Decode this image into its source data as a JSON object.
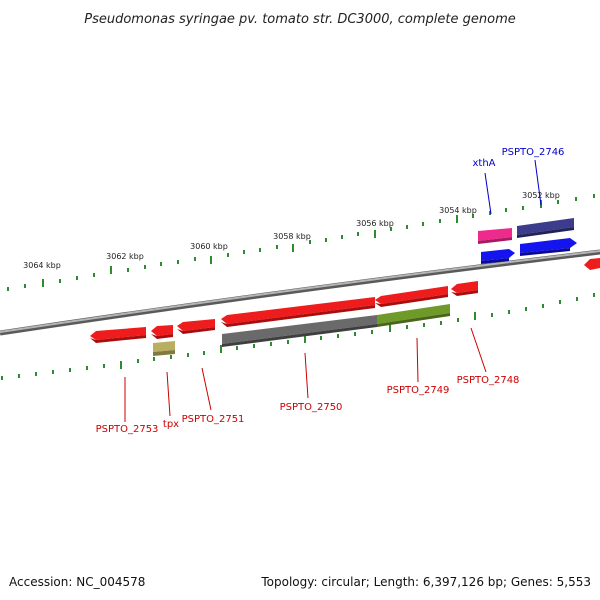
{
  "title": "Pseudomonas syringae pv. tomato str. DC3000, complete genome",
  "footer": {
    "accession": "Accession: NC_004578",
    "summary": "Topology: circular; Length: 6,397,126 bp; Genes: 5,553"
  },
  "scale": {
    "unit": "kbp",
    "labels": [
      "3064 kbp",
      "3062 kbp",
      "3060 kbp",
      "3058 kbp",
      "3056 kbp",
      "3054 kbp",
      "3052 kbp"
    ]
  },
  "colors": {
    "backbone": "#8a8a8a",
    "tick": "#2e8b2e",
    "cds": "#ee1c1c",
    "cds_grey": "#6a6a6a",
    "cds_olive": "#6f9a2a",
    "trna": "#b8b060",
    "xthA": "#ee2a8c",
    "PSPTO_2746": "#3c3c8c",
    "blue_feature": "#1414ee",
    "red_label": "#cc0000",
    "blue_label": "#0000cc"
  },
  "genes": [
    {
      "id": "PSPTO_2753",
      "label": "PSPTO_2753",
      "strand": "-",
      "color": "cds"
    },
    {
      "id": "tpx",
      "label": "tpx",
      "strand": "-",
      "color": "cds"
    },
    {
      "id": "tpx_rna",
      "label": "",
      "strand": "-",
      "color": "trna"
    },
    {
      "id": "PSPTO_2751",
      "label": "PSPTO_2751",
      "strand": "-",
      "color": "cds"
    },
    {
      "id": "PSPTO_2750",
      "label": "PSPTO_2750",
      "strand": "-",
      "color": "cds"
    },
    {
      "id": "PSPTO_2750_extra",
      "label": "",
      "strand": "-",
      "color": "cds_grey"
    },
    {
      "id": "PSPTO_2749",
      "label": "PSPTO_2749",
      "strand": "-",
      "color": "cds"
    },
    {
      "id": "PSPTO_2749_extra",
      "label": "",
      "strand": "-",
      "color": "cds_olive"
    },
    {
      "id": "PSPTO_2748",
      "label": "PSPTO_2748",
      "strand": "-",
      "color": "cds"
    },
    {
      "id": "xthA",
      "label": "xthA",
      "strand": "+",
      "color": "xthA"
    },
    {
      "id": "PSPTO_2746",
      "label": "PSPTO_2746",
      "strand": "+",
      "color": "PSPTO_2746"
    }
  ]
}
